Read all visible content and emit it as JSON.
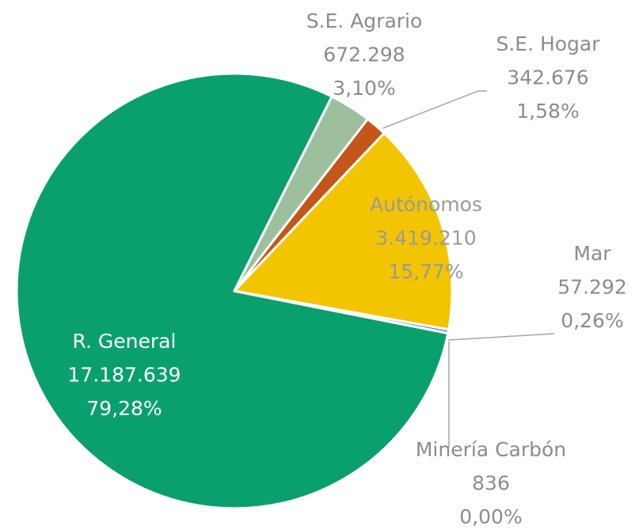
{
  "chart_data": {
    "type": "pie",
    "categories": [
      "R. General",
      "S.E. Agrario",
      "S.E. Hogar",
      "Autónomos",
      "Mar",
      "Minería Carbón"
    ],
    "values": [
      17187639,
      672298,
      342676,
      3419210,
      57292,
      836
    ],
    "value_labels": [
      "17.187.639",
      "672.298",
      "342.676",
      "3.419.210",
      "57.292",
      "836"
    ],
    "percents": [
      79.28,
      3.1,
      1.58,
      15.77,
      0.26,
      0.0
    ],
    "percent_labels": [
      "79,28%",
      "3,10%",
      "1,58%",
      "15,77%",
      "0,26%",
      "0,00%"
    ],
    "colors": [
      "#0aa06e",
      "#9dbf9d",
      "#c4561b",
      "#f2c500",
      "#4a7ebb",
      "#7f7f7f"
    ]
  }
}
